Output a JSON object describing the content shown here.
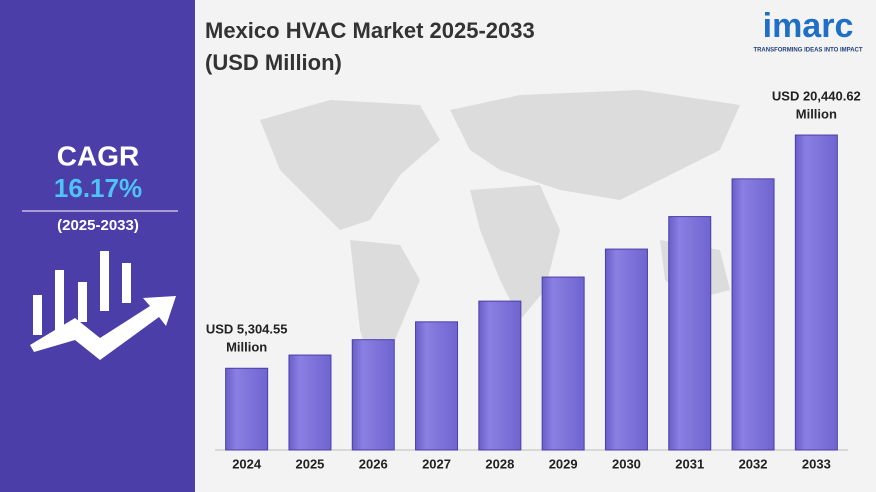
{
  "chart_data": {
    "type": "bar",
    "title": [
      "Mexico HVAC Market 2025-2033",
      "(USD Million)"
    ],
    "categories": [
      "2024",
      "2025",
      "2026",
      "2027",
      "2028",
      "2029",
      "2030",
      "2031",
      "2032",
      "2033"
    ],
    "values": [
      5304.55,
      6162,
      7159,
      8317,
      9662,
      11224,
      13039,
      15148,
      17597,
      20440.62
    ],
    "color": "#7b6fd8",
    "ylim": [
      0,
      22000
    ],
    "annotations": [
      {
        "index": 0,
        "lines": [
          "USD 5,304.55",
          "Million"
        ]
      },
      {
        "index": 9,
        "lines": [
          "USD 20,440.62",
          "Million"
        ]
      }
    ]
  },
  "sidebar": {
    "label": "CAGR",
    "value": "16.17%",
    "period": "(2025-2033)"
  },
  "logo": {
    "name": "imarc",
    "tagline": "TRANSFORMING IDEAS INTO IMPACT"
  }
}
